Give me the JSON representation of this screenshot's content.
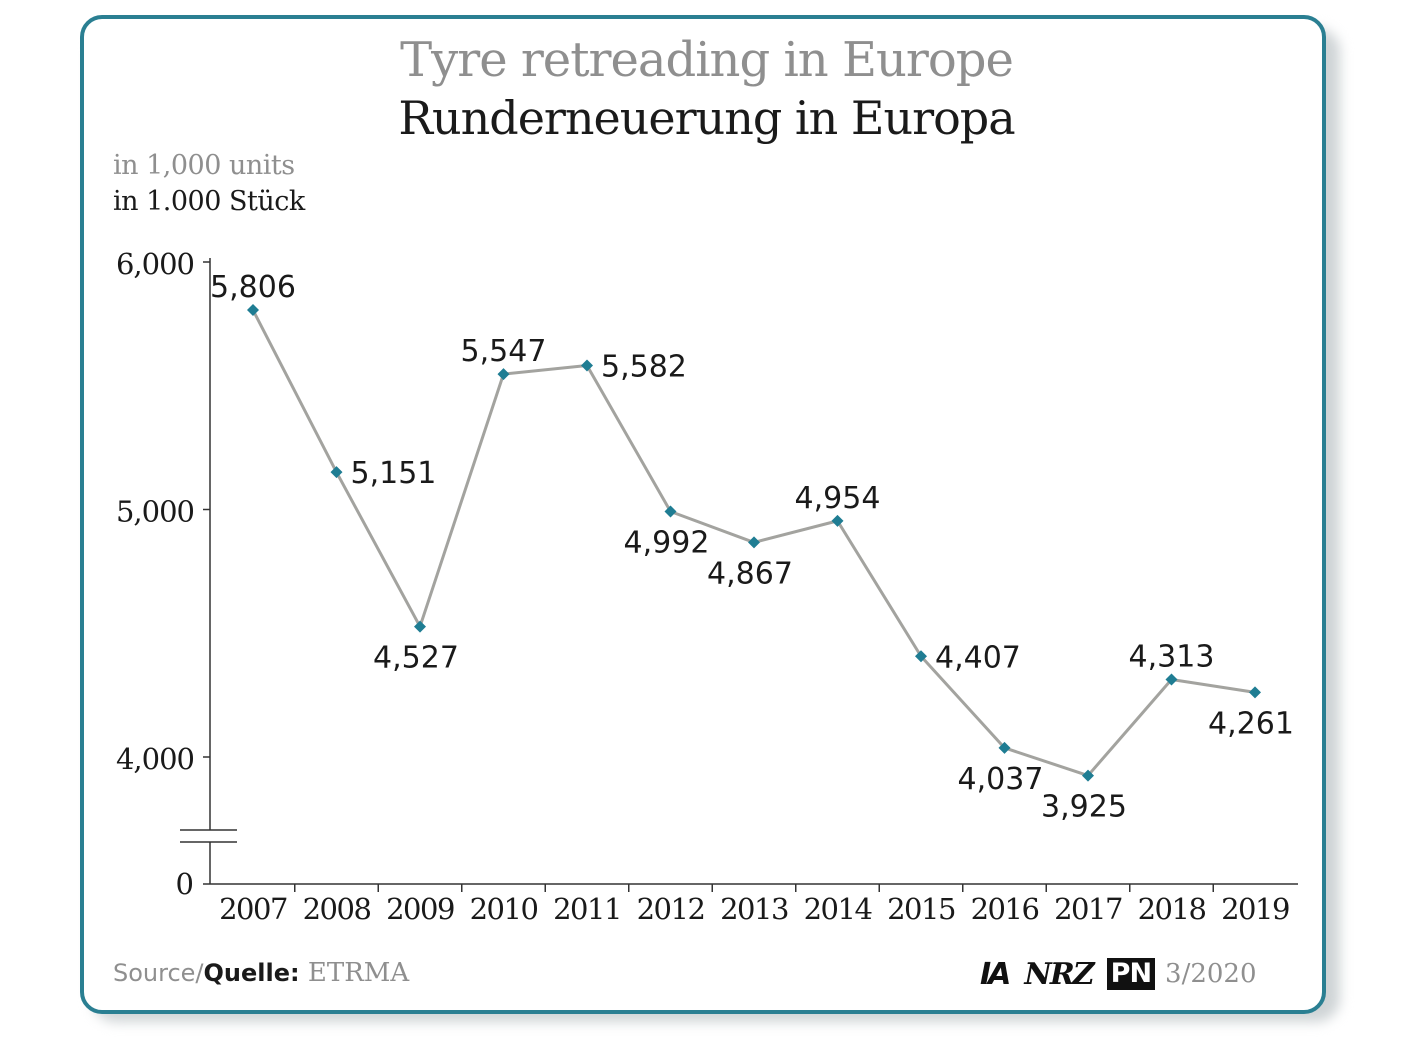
{
  "header": {
    "title_en": "Tyre retreading in Europe",
    "title_de": "Runderneuerung in Europa",
    "unit_en": "in 1,000 units",
    "unit_de": "in 1.000 Stück"
  },
  "footer": {
    "source_en": "Source/",
    "source_de": "Quelle:",
    "source_value": "ETRMA",
    "logo_ia": "IA",
    "logo_nrz": "NRZ",
    "logo_pn": "PN",
    "issue": "3/2020"
  },
  "colors": {
    "frame": "#2a7f92",
    "line": "#a3a39f",
    "marker": "#1f7d93",
    "text_dark": "#1a1a1a",
    "text_grey": "#8f8f8f"
  },
  "chart_data": {
    "type": "line",
    "title": "Tyre retreading in Europe",
    "subtitle": "Runderneuerung in Europa",
    "xlabel": "",
    "ylabel": "",
    "categories": [
      "2007",
      "2008",
      "2009",
      "2010",
      "2011",
      "2012",
      "2013",
      "2014",
      "2015",
      "2016",
      "2017",
      "2018",
      "2019"
    ],
    "series": [
      {
        "values": [
          5806,
          5151,
          4527,
          5547,
          5582,
          4992,
          4867,
          4954,
          4407,
          4037,
          3925,
          4313,
          4261
        ]
      }
    ],
    "data_labels": [
      "5,806",
      "5,151",
      "4,527",
      "5,547",
      "5,582",
      "4,992",
      "4,867",
      "4,954",
      "4,407",
      "4,037",
      "3,925",
      "4,313",
      "4,261"
    ],
    "label_position": [
      "above",
      "right",
      "below",
      "above",
      "right",
      "below",
      "below",
      "above",
      "right",
      "below",
      "below",
      "above",
      "below"
    ],
    "ylim": [
      3700,
      6000
    ],
    "yticks": [
      {
        "value": 6000,
        "label": "6,000"
      },
      {
        "value": 5000,
        "label": "5,000"
      },
      {
        "value": 4000,
        "label": "4,000"
      }
    ],
    "axis_break": true,
    "zero_label": "0",
    "grid": false,
    "legend": "none"
  }
}
